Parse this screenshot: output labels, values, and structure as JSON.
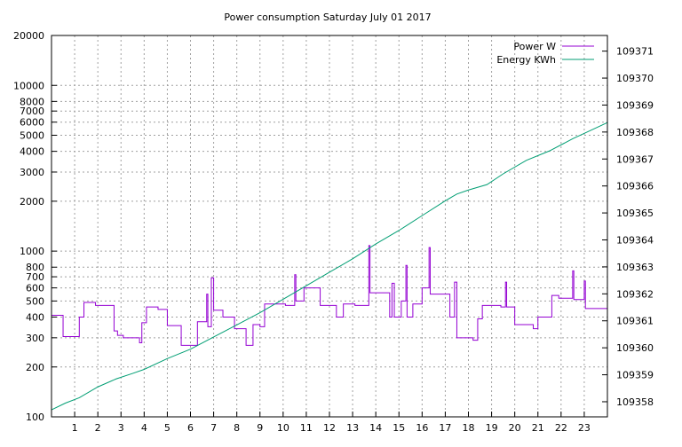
{
  "chart_data": {
    "type": "line",
    "title": "Power consumption Saturday July 01 2017",
    "xlabel": "",
    "ylabel": "",
    "y2label": "",
    "x_ticks": [
      "1",
      "2",
      "3",
      "4",
      "5",
      "6",
      "7",
      "8",
      "9",
      "10",
      "11",
      "12",
      "13",
      "14",
      "15",
      "16",
      "17",
      "18",
      "19",
      "20",
      "21",
      "22",
      "23"
    ],
    "xlim": [
      0,
      24
    ],
    "y_scale": "log",
    "ylim": [
      100,
      20000
    ],
    "y_ticks": [
      {
        "value": 100,
        "label": "100"
      },
      {
        "value": 200,
        "label": "200"
      },
      {
        "value": 300,
        "label": "300"
      },
      {
        "value": 400,
        "label": "400"
      },
      {
        "value": 500,
        "label": "500"
      },
      {
        "value": 600,
        "label": "600"
      },
      {
        "value": 700,
        "label": "700"
      },
      {
        "value": 800,
        "label": "800"
      },
      {
        "value": 1000,
        "label": "1000"
      },
      {
        "value": 2000,
        "label": "2000"
      },
      {
        "value": 3000,
        "label": "3000"
      },
      {
        "value": 4000,
        "label": "4000"
      },
      {
        "value": 5000,
        "label": "5000"
      },
      {
        "value": 6000,
        "label": "6000"
      },
      {
        "value": 7000,
        "label": "7000"
      },
      {
        "value": 8000,
        "label": "8000"
      },
      {
        "value": 10000,
        "label": "10000"
      },
      {
        "value": 20000,
        "label": "20000"
      }
    ],
    "y2_scale": "log",
    "y2_range": [
      109357.44,
      109371.58
    ],
    "y2_ticks": [
      "109358",
      "109359",
      "109360",
      "109361",
      "109362",
      "109363",
      "109364",
      "109365",
      "109366",
      "109367",
      "109368",
      "109369",
      "109370",
      "109371"
    ],
    "grid": true,
    "legend_position": "top-right",
    "series": [
      {
        "name": "Power W",
        "axis": "y1",
        "color": "#9400d3",
        "step": true,
        "points": [
          [
            0.0,
            410
          ],
          [
            0.5,
            305
          ],
          [
            1.2,
            400
          ],
          [
            1.4,
            490
          ],
          [
            1.9,
            470
          ],
          [
            2.7,
            330
          ],
          [
            2.85,
            310
          ],
          [
            3.1,
            300
          ],
          [
            3.8,
            280
          ],
          [
            3.9,
            370
          ],
          [
            4.1,
            460
          ],
          [
            4.6,
            445
          ],
          [
            5.0,
            355
          ],
          [
            5.6,
            270
          ],
          [
            6.3,
            375
          ],
          [
            6.7,
            550
          ],
          [
            6.75,
            350
          ],
          [
            6.9,
            690
          ],
          [
            7.0,
            440
          ],
          [
            7.4,
            400
          ],
          [
            7.9,
            340
          ],
          [
            8.4,
            270
          ],
          [
            8.7,
            360
          ],
          [
            9.0,
            350
          ],
          [
            9.2,
            480
          ],
          [
            10.1,
            470
          ],
          [
            10.5,
            720
          ],
          [
            10.55,
            500
          ],
          [
            10.9,
            600
          ],
          [
            11.6,
            470
          ],
          [
            12.3,
            400
          ],
          [
            12.6,
            480
          ],
          [
            13.1,
            470
          ],
          [
            13.7,
            1080
          ],
          [
            13.75,
            560
          ],
          [
            14.6,
            400
          ],
          [
            14.7,
            640
          ],
          [
            14.8,
            400
          ],
          [
            15.1,
            500
          ],
          [
            15.3,
            820
          ],
          [
            15.35,
            400
          ],
          [
            15.6,
            480
          ],
          [
            16.0,
            600
          ],
          [
            16.3,
            1050
          ],
          [
            16.35,
            550
          ],
          [
            17.2,
            400
          ],
          [
            17.4,
            650
          ],
          [
            17.5,
            300
          ],
          [
            18.2,
            290
          ],
          [
            18.4,
            390
          ],
          [
            18.6,
            470
          ],
          [
            19.4,
            460
          ],
          [
            19.6,
            650
          ],
          [
            19.65,
            460
          ],
          [
            20.0,
            360
          ],
          [
            20.8,
            340
          ],
          [
            21.0,
            400
          ],
          [
            21.6,
            540
          ],
          [
            21.9,
            520
          ],
          [
            22.5,
            760
          ],
          [
            22.55,
            510
          ],
          [
            23.0,
            660
          ],
          [
            23.05,
            450
          ],
          [
            24.0,
            450
          ]
        ]
      },
      {
        "name": "Energy KWh",
        "axis": "y2",
        "color": "#009e73",
        "step": false,
        "points": [
          [
            0.0,
            109357.7
          ],
          [
            0.6,
            109357.95
          ],
          [
            1.2,
            109358.15
          ],
          [
            2.0,
            109358.55
          ],
          [
            2.8,
            109358.85
          ],
          [
            3.5,
            109359.05
          ],
          [
            4.0,
            109359.2
          ],
          [
            5.0,
            109359.6
          ],
          [
            6.0,
            109359.95
          ],
          [
            7.0,
            109360.4
          ],
          [
            8.0,
            109360.85
          ],
          [
            9.0,
            109361.3
          ],
          [
            10.0,
            109361.8
          ],
          [
            11.0,
            109362.3
          ],
          [
            12.0,
            109362.8
          ],
          [
            13.0,
            109363.3
          ],
          [
            14.0,
            109363.85
          ],
          [
            15.0,
            109364.35
          ],
          [
            16.0,
            109364.9
          ],
          [
            17.0,
            109365.45
          ],
          [
            17.5,
            109365.7
          ],
          [
            18.0,
            109365.85
          ],
          [
            18.8,
            109366.05
          ],
          [
            19.5,
            109366.45
          ],
          [
            20.5,
            109366.95
          ],
          [
            21.5,
            109367.3
          ],
          [
            22.5,
            109367.75
          ],
          [
            23.5,
            109368.15
          ],
          [
            24.0,
            109368.35
          ]
        ]
      }
    ]
  }
}
